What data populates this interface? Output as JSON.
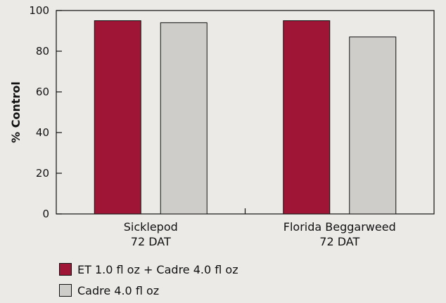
{
  "chart_data": {
    "type": "bar",
    "title": "",
    "xlabel": "",
    "ylabel": "% Control",
    "ylim": [
      0,
      100
    ],
    "yticks": [
      0,
      20,
      40,
      60,
      80,
      100
    ],
    "categories": [
      {
        "line1": "Sicklepod",
        "line2": "72 DAT"
      },
      {
        "line1": "Florida Beggarweed",
        "line2": "72 DAT"
      }
    ],
    "series": [
      {
        "name": "ET 1.0 fl oz + Cadre 4.0 fl oz",
        "color": "#9e1535",
        "values": [
          95,
          95
        ]
      },
      {
        "name": "Cadre 4.0 fl oz",
        "color": "#cfcdca",
        "values": [
          94,
          87
        ]
      }
    ],
    "legend_position": "bottom-left",
    "grid": false
  }
}
